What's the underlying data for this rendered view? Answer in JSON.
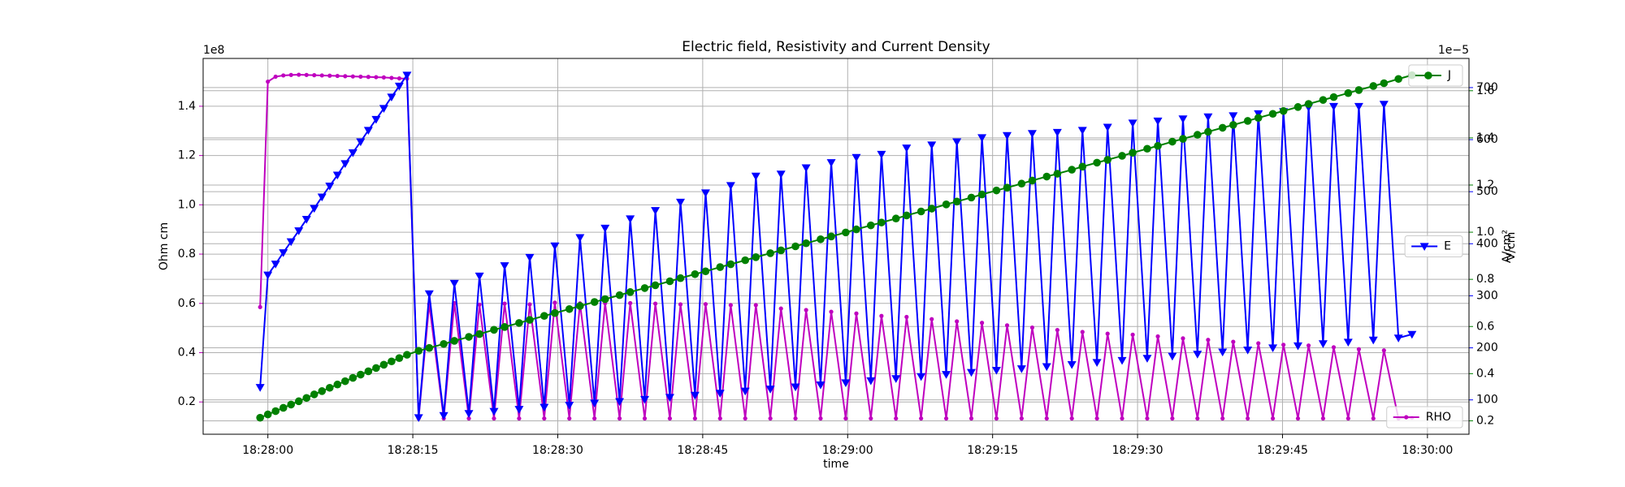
{
  "chart_data": {
    "type": "line",
    "title": "Electric field, Resistivity and Current Density",
    "xlabel": "time",
    "ylabel": "Ohm cm",
    "y2label": "V/cm",
    "y3label": "A/cm²",
    "yoffset": "1e8",
    "y3offset": "1e−5",
    "grid": true,
    "xlim": [
      "18:27:53.3",
      "18:30:04.3"
    ],
    "xticks": [
      "18:28:00",
      "18:28:15",
      "18:28:30",
      "18:28:45",
      "18:29:00",
      "18:29:15",
      "18:29:30",
      "18:29:45",
      "18:30:00"
    ],
    "ylim": [
      6900000,
      159400000
    ],
    "yticks": [
      {
        "value": 20000000,
        "label": "0.2"
      },
      {
        "value": 40000000,
        "label": "0.4"
      },
      {
        "value": 60000000,
        "label": "0.6"
      },
      {
        "value": 80000000,
        "label": "0.8"
      },
      {
        "value": 100000000,
        "label": "1.0"
      },
      {
        "value": 120000000,
        "label": "1.2"
      },
      {
        "value": 140000000,
        "label": "1.4"
      }
    ],
    "y2lim": [
      34,
      756
    ],
    "y2ticks": [
      100,
      200,
      300,
      400,
      500,
      600,
      700
    ],
    "y3lim": [
      1.43e-06,
      1.737e-05
    ],
    "y3ticks": [
      {
        "value": 2e-06,
        "label": "0.2"
      },
      {
        "value": 4e-06,
        "label": "0.4"
      },
      {
        "value": 6e-06,
        "label": "0.6"
      },
      {
        "value": 8e-06,
        "label": "0.8"
      },
      {
        "value": 1e-05,
        "label": "1.0"
      },
      {
        "value": 1.2e-05,
        "label": "1.2"
      },
      {
        "value": 1.4e-05,
        "label": "1.4"
      },
      {
        "value": 1.6e-05,
        "label": "1.6"
      }
    ],
    "x": [
      "18:27:59.2",
      "18:28:00.0",
      "18:28:00.8",
      "18:28:01.6",
      "18:28:02.4",
      "18:28:03.2",
      "18:28:04.0",
      "18:28:04.8",
      "18:28:05.6",
      "18:28:06.4",
      "18:28:07.2",
      "18:28:08.0",
      "18:28:08.8",
      "18:28:09.6",
      "18:28:10.4",
      "18:28:11.2",
      "18:28:12.0",
      "18:28:12.8",
      "18:28:13.6",
      "18:28:14.4",
      "18:28:15.6",
      "18:28:16.7",
      "18:28:18.2",
      "18:28:19.3",
      "18:28:20.8",
      "18:28:21.9",
      "18:28:23.4",
      "18:28:24.5",
      "18:28:26.0",
      "18:28:27.1",
      "18:28:28.6",
      "18:28:29.7",
      "18:28:31.2",
      "18:28:32.3",
      "18:28:33.8",
      "18:28:34.9",
      "18:28:36.4",
      "18:28:37.5",
      "18:28:39.0",
      "18:28:40.1",
      "18:28:41.6",
      "18:28:42.7",
      "18:28:44.2",
      "18:28:45.3",
      "18:28:46.8",
      "18:28:47.9",
      "18:28:49.4",
      "18:28:50.5",
      "18:28:52.0",
      "18:28:53.1",
      "18:28:54.6",
      "18:28:55.7",
      "18:28:57.2",
      "18:28:58.3",
      "18:28:59.8",
      "18:29:00.9",
      "18:29:02.4",
      "18:29:03.5",
      "18:29:05.0",
      "18:29:06.1",
      "18:29:07.6",
      "18:29:08.7",
      "18:29:10.2",
      "18:29:11.3",
      "18:29:12.8",
      "18:29:13.9",
      "18:29:15.4",
      "18:29:16.5",
      "18:29:18.0",
      "18:29:19.1",
      "18:29:20.6",
      "18:29:21.7",
      "18:29:23.2",
      "18:29:24.3",
      "18:29:25.8",
      "18:29:26.9",
      "18:29:28.4",
      "18:29:29.5",
      "18:29:31.0",
      "18:29:32.1",
      "18:29:33.6",
      "18:29:34.7",
      "18:29:36.2",
      "18:29:37.3",
      "18:29:38.8",
      "18:29:39.9",
      "18:29:41.4",
      "18:29:42.5",
      "18:29:44.0",
      "18:29:45.1",
      "18:29:46.6",
      "18:29:47.7",
      "18:29:49.2",
      "18:29:50.3",
      "18:29:51.8",
      "18:29:52.9",
      "18:29:54.4",
      "18:29:55.5",
      "18:29:57.0",
      "18:29:58.4"
    ],
    "series": [
      {
        "name": "RHO",
        "color": "#bf00bf",
        "axis": "y",
        "marker": "point",
        "legend": "lower right",
        "values": [
          58500000,
          150000000,
          152000000,
          152500000,
          152700000,
          152800000,
          152700000,
          152600000,
          152500000,
          152400000,
          152300000,
          152200000,
          152100000,
          152000000,
          151900000,
          151800000,
          151700000,
          151500000,
          151300000,
          151200000,
          13300000,
          59700000,
          13300000,
          60100000,
          13300000,
          59500000,
          13300000,
          59900000,
          13300000,
          59600000,
          13300000,
          60300000,
          13300000,
          60000000,
          13300000,
          60100000,
          13300000,
          60100000,
          13300000,
          59900000,
          13300000,
          59600000,
          13300000,
          59700000,
          13300000,
          59300000,
          13300000,
          59300000,
          13300000,
          57900000,
          13300000,
          57300000,
          13300000,
          56600000,
          13300000,
          55900000,
          13300000,
          54900000,
          13300000,
          54500000,
          13300000,
          53600000,
          13300000,
          52700000,
          13300000,
          52100000,
          13300000,
          51100000,
          13300000,
          50200000,
          13300000,
          49200000,
          13300000,
          48400000,
          13300000,
          47700000,
          13300000,
          47300000,
          13300000,
          46600000,
          13300000,
          45800000,
          13300000,
          45200000,
          13300000,
          44400000,
          13300000,
          43800000,
          13300000,
          43200000,
          13300000,
          42900000,
          13300000,
          42200000,
          13300000,
          41400000,
          13300000,
          40900000,
          13300000,
          13600000
        ]
      },
      {
        "name": "E",
        "color": "#0000ff",
        "axis": "y2",
        "marker": "triangle_down",
        "legend": "center right",
        "values": [
          124,
          340,
          361,
          383,
          404,
          425,
          447,
          468,
          490,
          511,
          532,
          554,
          575,
          596,
          618,
          639,
          660,
          682,
          703,
          724,
          66,
          304,
          70,
          324,
          74,
          338,
          78,
          358,
          82,
          374,
          86,
          396,
          90,
          412,
          94,
          430,
          97,
          448,
          101,
          464,
          105,
          480,
          109,
          498,
          113,
          512,
          117,
          530,
          121,
          534,
          125,
          546,
          129,
          556,
          133,
          566,
          137,
          572,
          141,
          584,
          145,
          590,
          149,
          596,
          153,
          604,
          157,
          608,
          160,
          612,
          164,
          614,
          168,
          618,
          172,
          624,
          176,
          632,
          180,
          636,
          184,
          640,
          188,
          644,
          192,
          646,
          196,
          650,
          200,
          654,
          204,
          662,
          208,
          664,
          211,
          664,
          215,
          668,
          219,
          226
        ]
      },
      {
        "name": "J",
        "color": "#008000",
        "axis": "y3",
        "marker": "circle",
        "legend": "upper right",
        "values": [
          2.13e-06,
          2.27e-06,
          2.41e-06,
          2.55e-06,
          2.69e-06,
          2.83e-06,
          2.97e-06,
          3.12e-06,
          3.26e-06,
          3.4e-06,
          3.54e-06,
          3.68e-06,
          3.82e-06,
          3.96e-06,
          4.1e-06,
          4.24e-06,
          4.38e-06,
          4.52e-06,
          4.66e-06,
          4.8e-06,
          4.97e-06,
          5.09e-06,
          5.26e-06,
          5.39e-06,
          5.56e-06,
          5.68e-06,
          5.86e-06,
          5.98e-06,
          6.15e-06,
          6.28e-06,
          6.45e-06,
          6.57e-06,
          6.74e-06,
          6.87e-06,
          7.04e-06,
          7.16e-06,
          7.33e-06,
          7.46e-06,
          7.63e-06,
          7.75e-06,
          7.92e-06,
          8.05e-06,
          8.22e-06,
          8.34e-06,
          8.52e-06,
          8.64e-06,
          8.81e-06,
          8.94e-06,
          9.11e-06,
          9.23e-06,
          9.4e-06,
          9.53e-06,
          9.7e-06,
          9.82e-06,
          9.99e-06,
          1.012e-05,
          1.029e-05,
          1.041e-05,
          1.058e-05,
          1.071e-05,
          1.088e-05,
          1.1e-05,
          1.118e-05,
          1.13e-05,
          1.147e-05,
          1.16e-05,
          1.177e-05,
          1.189e-05,
          1.206e-05,
          1.219e-05,
          1.236e-05,
          1.248e-05,
          1.265e-05,
          1.278e-05,
          1.295e-05,
          1.307e-05,
          1.324e-05,
          1.337e-05,
          1.354e-05,
          1.366e-05,
          1.384e-05,
          1.396e-05,
          1.413e-05,
          1.426e-05,
          1.443e-05,
          1.455e-05,
          1.472e-05,
          1.485e-05,
          1.502e-05,
          1.514e-05,
          1.531e-05,
          1.544e-05,
          1.561e-05,
          1.573e-05,
          1.59e-05,
          1.603e-05,
          1.62e-05,
          1.632e-05,
          1.65e-05,
          1.666e-05
        ]
      }
    ]
  }
}
